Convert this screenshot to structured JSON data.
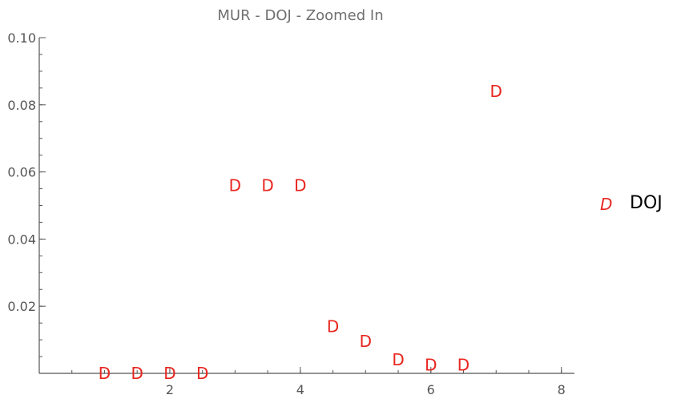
{
  "chart_data": {
    "type": "scatter",
    "title": "MUR - DOJ - Zoomed In",
    "xlabel": "",
    "ylabel": "",
    "xlim": [
      0,
      8.2
    ],
    "ylim": [
      0,
      0.1
    ],
    "x_ticks": [
      2,
      4,
      6,
      8
    ],
    "y_ticks": [
      0.02,
      0.04,
      0.06,
      0.08,
      0.1
    ],
    "x_tick_labels": [
      "2",
      "4",
      "6",
      "8"
    ],
    "y_tick_labels": [
      "0.02",
      "0.04",
      "0.06",
      "0.08",
      "0.10"
    ],
    "grid": false,
    "legend_position": "right",
    "series": [
      {
        "name": "DOJ",
        "marker": "D",
        "color": "#e8251f",
        "x": [
          1.0,
          1.5,
          2.0,
          2.5,
          3.0,
          3.5,
          4.0,
          4.5,
          5.0,
          5.5,
          6.0,
          6.5,
          7.0
        ],
        "y": [
          0.0,
          0.0,
          0.0,
          0.0,
          0.056,
          0.056,
          0.056,
          0.014,
          0.0095,
          0.004,
          0.0025,
          0.0025,
          0.084
        ]
      }
    ]
  }
}
